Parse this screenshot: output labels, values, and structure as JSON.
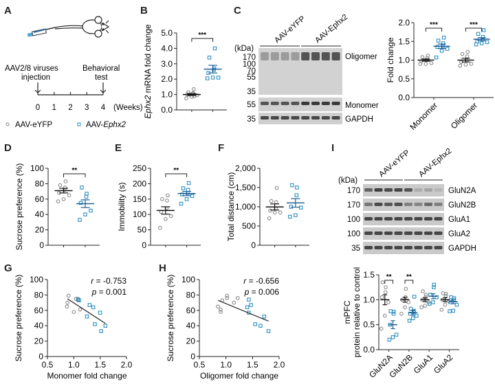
{
  "figure": {
    "panel_labels": [
      "A",
      "B",
      "C",
      "D",
      "E",
      "F",
      "G",
      "H",
      "I"
    ],
    "colors": {
      "control": "#8a8a8a",
      "treatment": "#2f8fc0",
      "treatment_dark": "#1f5f96",
      "mean": "#111111"
    },
    "legend": [
      {
        "label": "AAV-eYFP",
        "marker": "circle",
        "color": "#8a8a8a"
      },
      {
        "label_prefix": "AAV-",
        "label_italic": "Ephx2",
        "marker": "square",
        "color": "#2f8fc0"
      }
    ],
    "timeline": {
      "event_start_line1": "AAV2/8  viruses",
      "event_start_line2": "injection",
      "event_end_line1": "Behavioral",
      "event_end_line2": "test",
      "ticks": [
        "0",
        "1",
        "2",
        "3",
        "4"
      ],
      "unit": "(Weeks)"
    },
    "blot_C": {
      "group_labels": [
        "AAV-eYFP",
        "AAV-Ephx2"
      ],
      "kda_header": "(kDa)",
      "top_markers": [
        "170",
        "100",
        "70",
        "55",
        "35"
      ],
      "mid_marker": "55",
      "bottom_marker": "35",
      "band_labels": [
        "Oligomer",
        "Monomer",
        "GAPDH"
      ]
    },
    "blot_I": {
      "group_labels": [
        "AAV-eYFP",
        "AAV-Ephx2"
      ],
      "kda_header": "(kDa)",
      "rows": [
        {
          "marker": "170",
          "label": "GluN2A"
        },
        {
          "marker": "170",
          "label": "GluN2B"
        },
        {
          "marker": "100",
          "label": "GluA1"
        },
        {
          "marker": "100",
          "label": "GluA2"
        },
        {
          "marker": "35",
          "label": "GAPDH"
        }
      ]
    }
  },
  "chart_data": [
    {
      "id": "B",
      "type": "scatter",
      "title": "",
      "ylabel_italic": "Ephx2",
      "ylabel_rest": " mRNA fold change",
      "ylim": [
        0,
        5
      ],
      "yticks": [
        "0.0",
        "1.0",
        "2.0",
        "3.0",
        "4.0",
        "5.0"
      ],
      "categories": [
        "AAV-eYFP",
        "AAV-Ephx2"
      ],
      "series": [
        {
          "name": "AAV-eYFP",
          "values": [
            0.75,
            0.85,
            0.95,
            1.0,
            1.05,
            1.1,
            1.15,
            1.35,
            0.9,
            1.0
          ],
          "mean": 1.0,
          "sem": 0.06
        },
        {
          "name": "AAV-Ephx2",
          "values": [
            2.05,
            2.1,
            2.1,
            2.4,
            2.6,
            2.7,
            3.4,
            4.0
          ],
          "mean": 2.65,
          "sem": 0.25
        }
      ],
      "significance": [
        {
          "between": [
            0,
            1
          ],
          "label": "***"
        }
      ]
    },
    {
      "id": "C-quant",
      "type": "scatter",
      "ylabel": "Fold change",
      "ylim": [
        0,
        2
      ],
      "yticks": [
        "0.0",
        "0.5",
        "1.0",
        "1.5",
        "2.0"
      ],
      "categories": [
        "Monomer",
        "Oligomer"
      ],
      "series": [
        {
          "name": "AAV-eYFP",
          "groups": [
            {
              "values": [
                0.9,
                0.9,
                0.92,
                0.97,
                1.0,
                1.05,
                1.08,
                1.12
              ],
              "mean": 1.0,
              "sem": 0.03
            },
            {
              "values": [
                0.85,
                0.88,
                0.9,
                0.95,
                1.0,
                1.1,
                1.16,
                1.22
              ],
              "mean": 1.0,
              "sem": 0.05
            }
          ]
        },
        {
          "name": "AAV-Ephx2",
          "groups": [
            {
              "values": [
                1.07,
                1.25,
                1.3,
                1.35,
                1.38,
                1.45,
                1.52,
                1.6
              ],
              "mean": 1.37,
              "sem": 0.06
            },
            {
              "values": [
                1.42,
                1.45,
                1.48,
                1.5,
                1.55,
                1.62,
                1.7,
                1.8
              ],
              "mean": 1.56,
              "sem": 0.04
            }
          ]
        }
      ],
      "significance": [
        {
          "group": 0,
          "label": "***"
        },
        {
          "group": 1,
          "label": "***"
        }
      ]
    },
    {
      "id": "D",
      "type": "scatter",
      "ylabel": "Sucrose preference (%)",
      "ylim": [
        0,
        100
      ],
      "yticks": [
        "0",
        "20",
        "40",
        "60",
        "80",
        "100"
      ],
      "categories": [
        "AAV-eYFP",
        "AAV-Ephx2"
      ],
      "series": [
        {
          "name": "AAV-eYFP",
          "values": [
            57,
            60,
            65,
            68,
            72,
            75,
            78,
            83
          ],
          "mean": 71,
          "sem": 3
        },
        {
          "name": "AAV-Ephx2",
          "values": [
            33,
            40,
            45,
            55,
            63,
            67,
            75
          ],
          "mean": 54,
          "sem": 5
        }
      ],
      "significance": [
        {
          "between": [
            0,
            1
          ],
          "label": "**"
        }
      ]
    },
    {
      "id": "E",
      "type": "scatter",
      "ylabel": "Immobility (s)",
      "ylim": [
        0,
        250
      ],
      "yticks": [
        "0",
        "50",
        "100",
        "150",
        "200",
        "250"
      ],
      "categories": [
        "AAV-eYFP",
        "AAV-Ephx2"
      ],
      "series": [
        {
          "name": "AAV-eYFP",
          "values": [
            57,
            85,
            95,
            108,
            120,
            145,
            150,
            162
          ],
          "mean": 113,
          "sem": 12
        },
        {
          "name": "AAV-Ephx2",
          "values": [
            135,
            150,
            160,
            165,
            170,
            180,
            185,
            202
          ],
          "mean": 168,
          "sem": 7
        }
      ],
      "significance": [
        {
          "between": [
            0,
            1
          ],
          "label": "**"
        }
      ]
    },
    {
      "id": "F",
      "type": "scatter",
      "ylabel": "Total distance (cm)",
      "ylim": [
        0,
        2000
      ],
      "yticks": [
        "0",
        "500",
        "1,000",
        "1,500",
        "2,000"
      ],
      "categories": [
        "AAV-eYFP",
        "AAV-Ephx2"
      ],
      "series": [
        {
          "name": "AAV-eYFP",
          "values": [
            700,
            850,
            850,
            900,
            950,
            1120,
            1150,
            1490
          ],
          "mean": 995,
          "sem": 80
        },
        {
          "name": "AAV-Ephx2",
          "values": [
            740,
            780,
            980,
            1000,
            1300,
            1500,
            1560
          ],
          "mean": 1100,
          "sem": 110
        }
      ],
      "significance": []
    },
    {
      "id": "G",
      "type": "scatter",
      "xlabel": "Monomer fold change",
      "ylabel": "Sucrose preference (%)",
      "xlim": [
        0.5,
        2.0
      ],
      "ylim": [
        0,
        100
      ],
      "xticks": [
        "0.5",
        "1.0",
        "1.5",
        "2.0"
      ],
      "yticks": [
        "0",
        "20",
        "40",
        "60",
        "80",
        "100"
      ],
      "annotation": {
        "r": "-0.753",
        "p": "0.001"
      },
      "fit": {
        "x": [
          0.88,
          1.6
        ],
        "y": [
          75,
          43
        ]
      },
      "series": [
        {
          "name": "AAV-eYFP",
          "points": [
            [
              0.87,
              65
            ],
            [
              0.88,
              70
            ],
            [
              0.9,
              79
            ],
            [
              1.0,
              58
            ],
            [
              1.04,
              75
            ],
            [
              1.12,
              61
            ],
            [
              1.08,
              75
            ]
          ]
        },
        {
          "name": "AAV-Ephx2",
          "points": [
            [
              1.08,
              74
            ],
            [
              1.1,
              73
            ],
            [
              1.25,
              52
            ],
            [
              1.3,
              67
            ],
            [
              1.37,
              64
            ],
            [
              1.4,
              42
            ],
            [
              1.5,
              57
            ],
            [
              1.52,
              33
            ],
            [
              1.6,
              40
            ]
          ]
        }
      ]
    },
    {
      "id": "H",
      "type": "scatter",
      "xlabel": "Oligomer fold change",
      "ylabel": "Sucrose preference (%)",
      "xlim": [
        0.5,
        2.0
      ],
      "ylim": [
        0,
        100
      ],
      "xticks": [
        "0.5",
        "1.0",
        "1.5",
        "2.0"
      ],
      "yticks": [
        "0",
        "20",
        "40",
        "60",
        "80",
        "100"
      ],
      "annotation": {
        "r": "-0.656",
        "p": "0.006"
      },
      "fit": {
        "x": [
          0.85,
          1.8
        ],
        "y": [
          73,
          46
        ]
      },
      "series": [
        {
          "name": "AAV-eYFP",
          "points": [
            [
              0.85,
              65
            ],
            [
              0.9,
              58
            ],
            [
              0.9,
              61
            ],
            [
              0.93,
              73
            ],
            [
              1.02,
              76
            ],
            [
              1.02,
              79
            ],
            [
              1.15,
              70
            ],
            [
              1.22,
              76
            ]
          ]
        },
        {
          "name": "AAV-Ephx2",
          "points": [
            [
              1.4,
              64
            ],
            [
              1.43,
              57
            ],
            [
              1.43,
              74
            ],
            [
              1.47,
              67
            ],
            [
              1.55,
              42
            ],
            [
              1.65,
              40
            ],
            [
              1.72,
              52
            ],
            [
              1.8,
              33
            ]
          ]
        }
      ]
    },
    {
      "id": "I-quant",
      "type": "scatter",
      "ylabel_line1": "mPFC",
      "ylabel_line2": "protein relative to control",
      "ylim": [
        0,
        1.5
      ],
      "yticks": [
        "0.0",
        "0.5",
        "1.0",
        "1.5"
      ],
      "categories": [
        "GluN2A",
        "GluN2B",
        "GluA1",
        "GluA2"
      ],
      "series": [
        {
          "name": "AAV-eYFP",
          "groups": [
            {
              "values": [
                0.42,
                0.68,
                0.95,
                1.05,
                1.15,
                1.25,
                1.35
              ],
              "mean": 1.0,
              "sem": 0.1
            },
            {
              "values": [
                0.72,
                0.85,
                0.95,
                1.0,
                1.05,
                1.22
              ],
              "mean": 1.0,
              "sem": 0.05
            },
            {
              "values": [
                0.85,
                0.88,
                0.95,
                1.0,
                1.05,
                1.1,
                1.17
              ],
              "mean": 1.0,
              "sem": 0.04
            },
            {
              "values": [
                0.8,
                0.9,
                0.97,
                1.0,
                1.08,
                1.12,
                1.13
              ],
              "mean": 1.0,
              "sem": 0.04
            }
          ]
        },
        {
          "name": "AAV-Ephx2",
          "groups": [
            {
              "values": [
                0.2,
                0.25,
                0.3,
                0.5,
                0.72,
                0.76,
                0.77
              ],
              "mean": 0.5,
              "sem": 0.08
            },
            {
              "values": [
                0.58,
                0.63,
                0.68,
                0.72,
                0.75,
                0.78,
                0.82,
                1.06
              ],
              "mean": 0.74,
              "sem": 0.05
            },
            {
              "values": [
                0.92,
                0.95,
                1.05,
                1.1,
                1.25,
                1.3
              ],
              "mean": 1.07,
              "sem": 0.05
            },
            {
              "values": [
                0.77,
                0.78,
                0.9,
                0.95,
                1.0,
                1.03,
                1.05
              ],
              "mean": 0.96,
              "sem": 0.04
            }
          ]
        }
      ],
      "significance": [
        {
          "group": 0,
          "label": "**"
        },
        {
          "group": 1,
          "label": "**"
        }
      ]
    }
  ]
}
